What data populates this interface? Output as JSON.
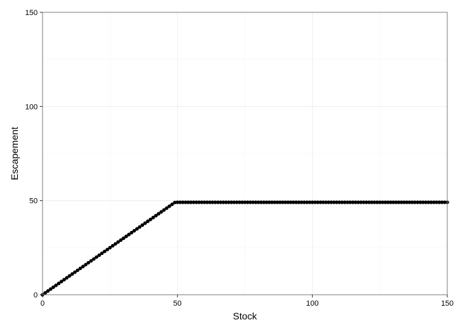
{
  "chart_data": {
    "type": "scatter",
    "title": "",
    "xlabel": "Stock",
    "ylabel": "Escapement",
    "xlim": [
      0,
      150
    ],
    "ylim": [
      0,
      150
    ],
    "x_ticks": [
      0,
      50,
      100,
      150
    ],
    "y_ticks": [
      0,
      50,
      100,
      150
    ],
    "grid": true,
    "legend": "none",
    "point_color": "#000000",
    "series": [
      {
        "x_start": 0,
        "x_end": 150,
        "x_step": 1,
        "rule": "escapement = stock for stock <= 49.1; escapement = 49.1 for stock > 49.1",
        "cap": 49.1
      }
    ]
  }
}
